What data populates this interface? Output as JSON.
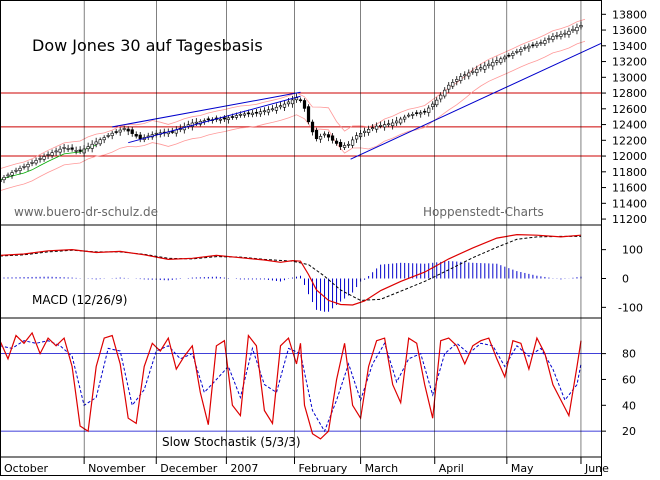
{
  "chart_data": [
    {
      "type": "candlestick",
      "title": "Dow Jones 30 auf Tagesbasis",
      "annotations": [
        "www.buero-dr-schulz.de",
        "Hoppenstedt-Charts"
      ],
      "y_ticks": [
        11200,
        11400,
        11600,
        11800,
        12000,
        12200,
        12400,
        12600,
        12800,
        13000,
        13200,
        13400,
        13600,
        13800
      ],
      "ylim": [
        11150,
        13880
      ],
      "horizontal_lines": [
        12800,
        12370,
        12000
      ],
      "colors": {
        "price": "#000000",
        "lines": "#cc0000",
        "bands": "#ff9999",
        "trend": "#0000cc",
        "ma": "#00aa00"
      },
      "close_path": [
        [
          0,
          11700
        ],
        [
          8,
          11820
        ],
        [
          16,
          11920
        ],
        [
          24,
          12020
        ],
        [
          32,
          12110
        ],
        [
          40,
          12060
        ],
        [
          48,
          12180
        ],
        [
          56,
          12290
        ],
        [
          62,
          12350
        ],
        [
          70,
          12220
        ],
        [
          78,
          12290
        ],
        [
          86,
          12310
        ],
        [
          96,
          12420
        ],
        [
          104,
          12460
        ],
        [
          112,
          12470
        ],
        [
          120,
          12530
        ],
        [
          128,
          12550
        ],
        [
          136,
          12600
        ],
        [
          142,
          12660
        ],
        [
          148,
          12740
        ],
        [
          151,
          12690
        ],
        [
          155,
          12350
        ],
        [
          158,
          12220
        ],
        [
          162,
          12280
        ],
        [
          166,
          12200
        ],
        [
          170,
          12120
        ],
        [
          174,
          12150
        ],
        [
          178,
          12260
        ],
        [
          183,
          12330
        ],
        [
          188,
          12380
        ],
        [
          196,
          12420
        ],
        [
          204,
          12520
        ],
        [
          212,
          12560
        ],
        [
          218,
          12710
        ],
        [
          224,
          12900
        ],
        [
          230,
          13010
        ],
        [
          238,
          13100
        ],
        [
          246,
          13190
        ],
        [
          254,
          13280
        ],
        [
          262,
          13380
        ],
        [
          270,
          13440
        ],
        [
          276,
          13520
        ],
        [
          282,
          13560
        ],
        [
          286,
          13610
        ],
        [
          290,
          13660
        ]
      ],
      "trendlines": [
        {
          "from": [
            56,
            12370
          ],
          "to": [
            150,
            12810
          ]
        },
        {
          "from": [
            64,
            12170
          ],
          "to": [
            150,
            12760
          ]
        },
        {
          "from": [
            175,
            11960
          ],
          "to": [
            300,
            13430
          ]
        }
      ]
    },
    {
      "type": "line",
      "label": "MACD (12/26/9)",
      "y_ticks": [
        -100,
        0,
        100
      ],
      "ylim": [
        -130,
        175
      ],
      "macd": [
        [
          0,
          80
        ],
        [
          12,
          85
        ],
        [
          24,
          96
        ],
        [
          36,
          100
        ],
        [
          48,
          90
        ],
        [
          60,
          94
        ],
        [
          72,
          82
        ],
        [
          84,
          66
        ],
        [
          96,
          70
        ],
        [
          108,
          80
        ],
        [
          120,
          72
        ],
        [
          132,
          64
        ],
        [
          140,
          56
        ],
        [
          146,
          62
        ],
        [
          150,
          60
        ],
        [
          154,
          14
        ],
        [
          158,
          -40
        ],
        [
          164,
          -76
        ],
        [
          170,
          -90
        ],
        [
          176,
          -92
        ],
        [
          182,
          -78
        ],
        [
          190,
          -42
        ],
        [
          200,
          -10
        ],
        [
          212,
          22
        ],
        [
          224,
          68
        ],
        [
          236,
          106
        ],
        [
          248,
          140
        ],
        [
          258,
          152
        ],
        [
          268,
          150
        ],
        [
          280,
          144
        ],
        [
          290,
          150
        ]
      ],
      "signal": [
        [
          0,
          78
        ],
        [
          12,
          82
        ],
        [
          24,
          92
        ],
        [
          36,
          98
        ],
        [
          48,
          92
        ],
        [
          60,
          92
        ],
        [
          72,
          84
        ],
        [
          84,
          70
        ],
        [
          96,
          68
        ],
        [
          108,
          76
        ],
        [
          120,
          74
        ],
        [
          132,
          66
        ],
        [
          146,
          60
        ],
        [
          154,
          48
        ],
        [
          162,
          8
        ],
        [
          170,
          -40
        ],
        [
          180,
          -76
        ],
        [
          190,
          -72
        ],
        [
          200,
          -44
        ],
        [
          212,
          -10
        ],
        [
          224,
          30
        ],
        [
          236,
          72
        ],
        [
          248,
          108
        ],
        [
          258,
          136
        ],
        [
          268,
          144
        ],
        [
          280,
          146
        ],
        [
          290,
          146
        ]
      ]
    },
    {
      "type": "line",
      "label": "Slow Stochastik (5/3/3)",
      "y_ticks": [
        20,
        40,
        60,
        80
      ],
      "ylim": [
        0,
        106
      ],
      "reference_lines": [
        80,
        20
      ],
      "k": [
        [
          0,
          90
        ],
        [
          4,
          76
        ],
        [
          8,
          94
        ],
        [
          12,
          88
        ],
        [
          16,
          96
        ],
        [
          20,
          80
        ],
        [
          24,
          92
        ],
        [
          28,
          86
        ],
        [
          32,
          92
        ],
        [
          36,
          70
        ],
        [
          40,
          24
        ],
        [
          44,
          20
        ],
        [
          48,
          70
        ],
        [
          52,
          92
        ],
        [
          56,
          94
        ],
        [
          60,
          72
        ],
        [
          64,
          30
        ],
        [
          68,
          26
        ],
        [
          72,
          70
        ],
        [
          76,
          88
        ],
        [
          80,
          82
        ],
        [
          84,
          92
        ],
        [
          88,
          68
        ],
        [
          92,
          78
        ],
        [
          96,
          86
        ],
        [
          100,
          50
        ],
        [
          104,
          25
        ],
        [
          108,
          86
        ],
        [
          112,
          90
        ],
        [
          116,
          40
        ],
        [
          120,
          32
        ],
        [
          124,
          94
        ],
        [
          128,
          86
        ],
        [
          132,
          36
        ],
        [
          136,
          26
        ],
        [
          140,
          86
        ],
        [
          144,
          92
        ],
        [
          148,
          72
        ],
        [
          150,
          88
        ],
        [
          152,
          40
        ],
        [
          156,
          18
        ],
        [
          160,
          14
        ],
        [
          164,
          20
        ],
        [
          168,
          60
        ],
        [
          172,
          88
        ],
        [
          176,
          40
        ],
        [
          180,
          30
        ],
        [
          184,
          70
        ],
        [
          188,
          90
        ],
        [
          192,
          92
        ],
        [
          196,
          56
        ],
        [
          200,
          42
        ],
        [
          204,
          92
        ],
        [
          208,
          88
        ],
        [
          212,
          56
        ],
        [
          216,
          30
        ],
        [
          220,
          90
        ],
        [
          224,
          92
        ],
        [
          228,
          86
        ],
        [
          232,
          72
        ],
        [
          236,
          86
        ],
        [
          240,
          90
        ],
        [
          244,
          92
        ],
        [
          248,
          76
        ],
        [
          252,
          62
        ],
        [
          256,
          90
        ],
        [
          260,
          88
        ],
        [
          264,
          68
        ],
        [
          268,
          92
        ],
        [
          272,
          80
        ],
        [
          276,
          56
        ],
        [
          280,
          44
        ],
        [
          284,
          32
        ],
        [
          288,
          70
        ],
        [
          290,
          90
        ]
      ],
      "d": [
        [
          0,
          86
        ],
        [
          6,
          84
        ],
        [
          12,
          90
        ],
        [
          18,
          88
        ],
        [
          24,
          90
        ],
        [
          30,
          86
        ],
        [
          36,
          78
        ],
        [
          42,
          40
        ],
        [
          48,
          46
        ],
        [
          54,
          84
        ],
        [
          60,
          82
        ],
        [
          66,
          40
        ],
        [
          72,
          52
        ],
        [
          78,
          82
        ],
        [
          84,
          86
        ],
        [
          90,
          76
        ],
        [
          96,
          80
        ],
        [
          102,
          50
        ],
        [
          108,
          60
        ],
        [
          114,
          70
        ],
        [
          120,
          46
        ],
        [
          126,
          84
        ],
        [
          132,
          56
        ],
        [
          138,
          50
        ],
        [
          144,
          84
        ],
        [
          150,
          80
        ],
        [
          156,
          36
        ],
        [
          162,
          20
        ],
        [
          168,
          44
        ],
        [
          174,
          72
        ],
        [
          180,
          44
        ],
        [
          186,
          72
        ],
        [
          192,
          88
        ],
        [
          198,
          58
        ],
        [
          204,
          76
        ],
        [
          210,
          80
        ],
        [
          216,
          48
        ],
        [
          222,
          80
        ],
        [
          228,
          88
        ],
        [
          234,
          80
        ],
        [
          240,
          88
        ],
        [
          246,
          86
        ],
        [
          252,
          70
        ],
        [
          258,
          86
        ],
        [
          264,
          78
        ],
        [
          270,
          84
        ],
        [
          276,
          68
        ],
        [
          282,
          44
        ],
        [
          288,
          56
        ],
        [
          290,
          72
        ]
      ]
    }
  ],
  "x_axis": {
    "months": [
      "October",
      "November",
      "December",
      "2007",
      "February",
      "March",
      "April",
      "May",
      "June"
    ],
    "month_positions": [
      0,
      42,
      78,
      113,
      147,
      180,
      217,
      253,
      290
    ],
    "day_range": [
      0,
      300
    ]
  }
}
